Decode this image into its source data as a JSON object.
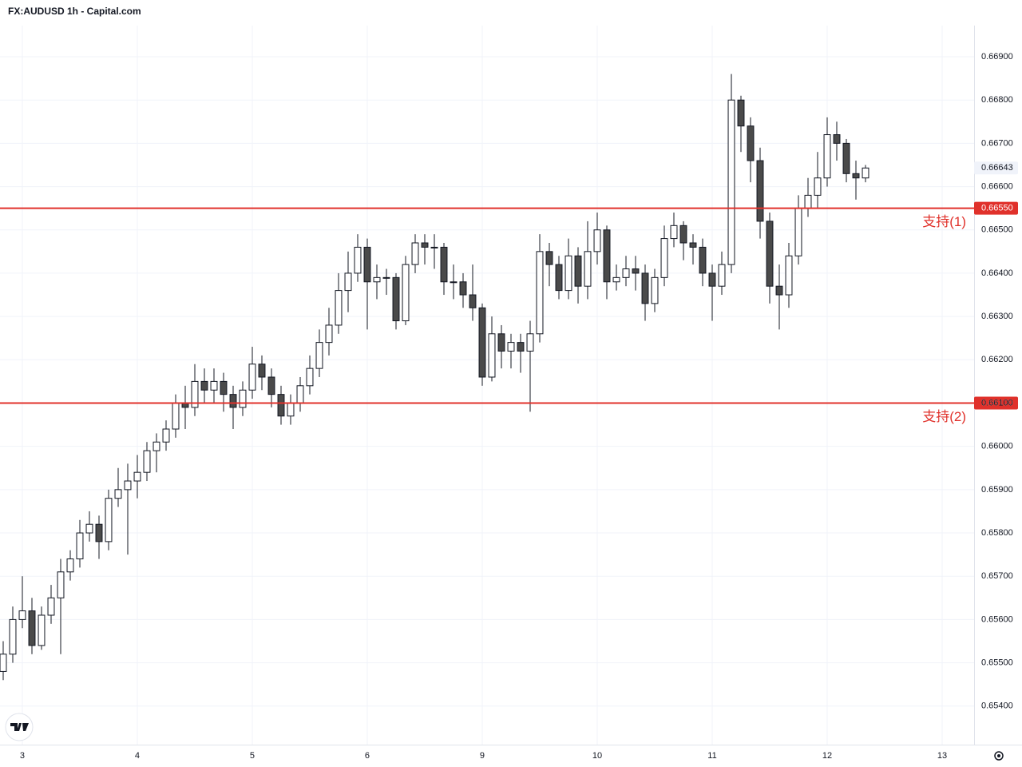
{
  "chart_data": {
    "type": "candlestick",
    "title": "FX:AUDUSD 1h - Capital.com",
    "x": [
      -2,
      -1,
      0,
      1,
      2,
      3,
      4,
      5,
      6,
      7,
      8,
      9,
      10,
      11,
      12,
      13,
      14,
      15,
      16,
      17,
      18,
      19,
      20,
      21,
      22,
      23,
      24,
      25,
      26,
      27,
      28,
      29,
      30,
      31,
      32,
      33,
      34,
      35,
      36,
      37,
      38,
      39,
      40,
      41,
      42,
      43,
      44,
      45,
      46,
      47,
      48,
      49,
      50,
      51,
      52,
      53,
      54,
      55,
      56,
      57,
      58,
      59,
      60,
      61,
      62,
      63,
      64,
      65,
      66,
      67,
      68,
      69,
      70,
      71,
      72,
      73,
      74,
      75,
      76,
      77,
      78,
      79,
      80,
      81,
      82,
      83,
      84,
      85,
      86,
      87,
      88
    ],
    "open": [
      0.6548,
      0.6552,
      0.656,
      0.6562,
      0.6554,
      0.6561,
      0.6565,
      0.6571,
      0.6574,
      0.658,
      0.6582,
      0.6578,
      0.6588,
      0.659,
      0.6592,
      0.6594,
      0.6599,
      0.6601,
      0.6604,
      0.661,
      0.6609,
      0.6615,
      0.6613,
      0.6615,
      0.6612,
      0.6609,
      0.6613,
      0.6619,
      0.6616,
      0.6612,
      0.6607,
      0.661,
      0.6614,
      0.6618,
      0.6624,
      0.6628,
      0.6636,
      0.664,
      0.6646,
      0.6638,
      0.6639,
      0.6639,
      0.6629,
      0.6642,
      0.6647,
      0.6646,
      0.6646,
      0.6638,
      0.6638,
      0.6635,
      0.6632,
      0.6616,
      0.6626,
      0.6622,
      0.6624,
      0.6622,
      0.6626,
      0.6645,
      0.6642,
      0.6636,
      0.6644,
      0.6637,
      0.6645,
      0.665,
      0.6638,
      0.6639,
      0.6641,
      0.664,
      0.6633,
      0.6639,
      0.6648,
      0.6651,
      0.6647,
      0.6646,
      0.664,
      0.6637,
      0.6642,
      0.668,
      0.6674,
      0.6666,
      0.6652,
      0.6637,
      0.6635,
      0.6644,
      0.6655,
      0.6658,
      0.6662,
      0.6672,
      0.667,
      0.6663,
      0.6662
    ],
    "high": [
      0.6555,
      0.6563,
      0.657,
      0.6565,
      0.6563,
      0.6568,
      0.6574,
      0.6576,
      0.6583,
      0.6585,
      0.6584,
      0.659,
      0.6595,
      0.6596,
      0.6598,
      0.6601,
      0.6603,
      0.6606,
      0.6612,
      0.6614,
      0.6619,
      0.6618,
      0.6618,
      0.6617,
      0.6614,
      0.6615,
      0.6623,
      0.6621,
      0.6618,
      0.6614,
      0.6612,
      0.6616,
      0.6621,
      0.6627,
      0.6632,
      0.664,
      0.6645,
      0.6649,
      0.6648,
      0.6642,
      0.6641,
      0.664,
      0.6644,
      0.6649,
      0.6649,
      0.6649,
      0.6647,
      0.6642,
      0.664,
      0.6642,
      0.6633,
      0.663,
      0.6628,
      0.6626,
      0.6626,
      0.6629,
      0.6649,
      0.6647,
      0.6644,
      0.6648,
      0.6646,
      0.6652,
      0.6654,
      0.6651,
      0.6642,
      0.6644,
      0.6644,
      0.6642,
      0.6641,
      0.6651,
      0.6654,
      0.6652,
      0.6649,
      0.6648,
      0.6642,
      0.6645,
      0.6686,
      0.6681,
      0.6676,
      0.6669,
      0.6654,
      0.6642,
      0.6647,
      0.6658,
      0.6662,
      0.6668,
      0.6676,
      0.6675,
      0.6671,
      0.6666,
      0.6665
    ],
    "low": [
      0.6546,
      0.655,
      0.6558,
      0.6552,
      0.6553,
      0.6559,
      0.6552,
      0.6569,
      0.6572,
      0.6578,
      0.6574,
      0.6576,
      0.6586,
      0.6575,
      0.6588,
      0.6592,
      0.6594,
      0.6599,
      0.6602,
      0.6604,
      0.6607,
      0.661,
      0.661,
      0.6608,
      0.6604,
      0.6607,
      0.6611,
      0.6613,
      0.6609,
      0.6605,
      0.6605,
      0.6608,
      0.6612,
      0.6616,
      0.6621,
      0.6626,
      0.6631,
      0.6638,
      0.6627,
      0.6634,
      0.6635,
      0.6627,
      0.6628,
      0.664,
      0.6642,
      0.6641,
      0.6635,
      0.6634,
      0.6632,
      0.6629,
      0.6614,
      0.6615,
      0.6618,
      0.6618,
      0.6617,
      0.6608,
      0.6624,
      0.6637,
      0.6634,
      0.6634,
      0.6633,
      0.6634,
      0.6642,
      0.6634,
      0.6636,
      0.6637,
      0.6636,
      0.6629,
      0.6631,
      0.6637,
      0.6646,
      0.6643,
      0.6642,
      0.6637,
      0.6629,
      0.6635,
      0.664,
      0.6668,
      0.6661,
      0.6648,
      0.6633,
      0.6627,
      0.6632,
      0.6642,
      0.6653,
      0.6655,
      0.666,
      0.6666,
      0.6661,
      0.6657,
      0.6661
    ],
    "close": [
      0.6552,
      0.656,
      0.6562,
      0.6554,
      0.6561,
      0.6565,
      0.6571,
      0.6574,
      0.658,
      0.6582,
      0.6578,
      0.6588,
      0.659,
      0.6592,
      0.6594,
      0.6599,
      0.6601,
      0.6604,
      0.661,
      0.6609,
      0.6615,
      0.6613,
      0.6615,
      0.6612,
      0.6609,
      0.6613,
      0.6619,
      0.6616,
      0.6612,
      0.6607,
      0.661,
      0.6614,
      0.6618,
      0.6624,
      0.6628,
      0.6636,
      0.664,
      0.6646,
      0.6638,
      0.6639,
      0.6639,
      0.6629,
      0.6642,
      0.6647,
      0.6646,
      0.6646,
      0.6638,
      0.6638,
      0.6635,
      0.6632,
      0.6616,
      0.6626,
      0.6622,
      0.6624,
      0.6622,
      0.6626,
      0.6645,
      0.6642,
      0.6636,
      0.6644,
      0.6637,
      0.6645,
      0.665,
      0.6638,
      0.6639,
      0.6641,
      0.664,
      0.6633,
      0.6639,
      0.6648,
      0.6651,
      0.6647,
      0.6646,
      0.664,
      0.6637,
      0.6642,
      0.668,
      0.6674,
      0.6666,
      0.6652,
      0.6637,
      0.6635,
      0.6644,
      0.6655,
      0.6658,
      0.6662,
      0.6672,
      0.667,
      0.6663,
      0.6662,
      0.66643
    ],
    "up_color": "#ffffff",
    "down_color": "#4a4a4a",
    "xlim": [
      -2.333,
      99.333
    ],
    "xticks": [
      {
        "value": 0,
        "label": "3"
      },
      {
        "value": 12,
        "label": "4"
      },
      {
        "value": 24,
        "label": "5"
      },
      {
        "value": 36,
        "label": "6"
      },
      {
        "value": 48,
        "label": "9"
      },
      {
        "value": 60,
        "label": "10"
      },
      {
        "value": 72,
        "label": "11"
      },
      {
        "value": 84,
        "label": "12"
      },
      {
        "value": 96,
        "label": "13"
      }
    ],
    "ylim": [
      0.65311,
      0.66972
    ],
    "yticks": [
      {
        "value": 0.669,
        "label": "0.66900"
      },
      {
        "value": 0.668,
        "label": "0.66800"
      },
      {
        "value": 0.667,
        "label": "0.66700"
      },
      {
        "value": 0.666,
        "label": "0.66600"
      },
      {
        "value": 0.665,
        "label": "0.66500"
      },
      {
        "value": 0.664,
        "label": "0.66400"
      },
      {
        "value": 0.663,
        "label": "0.66300"
      },
      {
        "value": 0.662,
        "label": "0.66200"
      },
      {
        "value": 0.661,
        "label": "0.66100"
      },
      {
        "value": 0.66,
        "label": "0.66000"
      },
      {
        "value": 0.659,
        "label": "0.65900"
      },
      {
        "value": 0.658,
        "label": "0.65800"
      },
      {
        "value": 0.657,
        "label": "0.65700"
      },
      {
        "value": 0.656,
        "label": "0.65600"
      },
      {
        "value": 0.655,
        "label": "0.65500"
      },
      {
        "value": 0.654,
        "label": "0.65400"
      }
    ],
    "grid": true,
    "levels": [
      {
        "value": 0.6655,
        "label": "0.66550",
        "annotation": "支持(1)",
        "color": "#e0312b"
      },
      {
        "value": 0.661,
        "label": "0.66100",
        "annotation": "支持(2)",
        "color": "#e0312b"
      }
    ],
    "last_price": {
      "value": 0.66643,
      "label": "0.66643"
    }
  }
}
